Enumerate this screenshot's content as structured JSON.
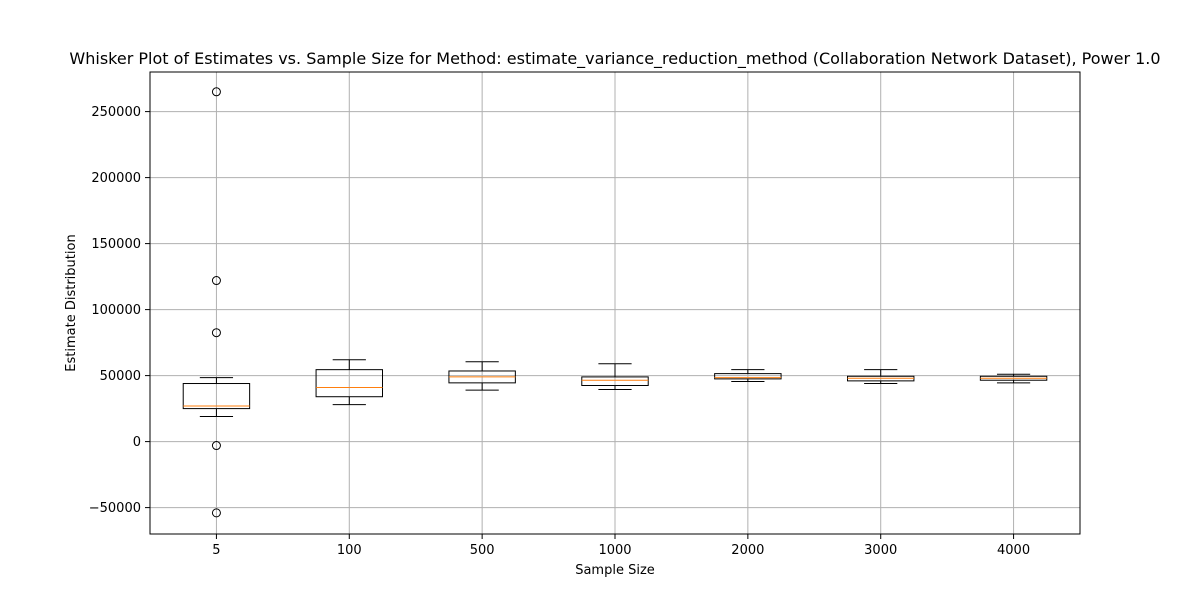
{
  "chart_data": {
    "type": "box",
    "title": "Whisker Plot of Estimates vs. Sample Size for Method: estimate_variance_reduction_method (Collaboration Network Dataset), Power 1.0",
    "xlabel": "Sample Size",
    "ylabel": "Estimate Distribution",
    "categories": [
      "5",
      "100",
      "500",
      "1000",
      "2000",
      "3000",
      "4000"
    ],
    "ylim": [
      -70000,
      280000
    ],
    "yticks": [
      -50000,
      0,
      50000,
      100000,
      150000,
      200000,
      250000
    ],
    "ytick_labels": [
      "−50000",
      "0",
      "50000",
      "100000",
      "150000",
      "200000",
      "250000"
    ],
    "grid": true,
    "legend": "none",
    "boxes": [
      {
        "category": "5",
        "whisker_low": 19000,
        "q1": 25000,
        "median": 27000,
        "q3": 44000,
        "whisker_high": 48500,
        "outliers": [
          265000,
          122000,
          82500,
          -3000,
          -54000
        ]
      },
      {
        "category": "100",
        "whisker_low": 28000,
        "q1": 34000,
        "median": 41000,
        "q3": 54500,
        "whisker_high": 62000,
        "outliers": []
      },
      {
        "category": "500",
        "whisker_low": 39000,
        "q1": 44500,
        "median": 49000,
        "q3": 53500,
        "whisker_high": 60500,
        "outliers": []
      },
      {
        "category": "1000",
        "whisker_low": 39500,
        "q1": 42500,
        "median": 46500,
        "q3": 49000,
        "whisker_high": 59000,
        "outliers": []
      },
      {
        "category": "2000",
        "whisker_low": 45500,
        "q1": 47500,
        "median": 48500,
        "q3": 51500,
        "whisker_high": 54500,
        "outliers": []
      },
      {
        "category": "3000",
        "whisker_low": 44000,
        "q1": 46000,
        "median": 48000,
        "q3": 49500,
        "whisker_high": 54500,
        "outliers": []
      },
      {
        "category": "4000",
        "whisker_low": 44500,
        "q1": 46500,
        "median": 48000,
        "q3": 49500,
        "whisker_high": 51000,
        "outliers": []
      }
    ],
    "colors": {
      "box": "#000000",
      "median": "#ff7f0e",
      "grid": "#b0b0b0",
      "outlier_face": "none",
      "outlier_edge": "#000000"
    }
  }
}
